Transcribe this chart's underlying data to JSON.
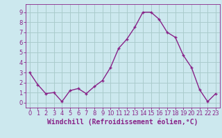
{
  "x": [
    0,
    1,
    2,
    3,
    4,
    5,
    6,
    7,
    8,
    9,
    10,
    11,
    12,
    13,
    14,
    15,
    16,
    17,
    18,
    19,
    20,
    21,
    22,
    23
  ],
  "y": [
    3.0,
    1.8,
    0.9,
    1.0,
    0.1,
    1.2,
    1.4,
    0.9,
    1.6,
    2.2,
    3.5,
    5.4,
    6.3,
    7.5,
    9.0,
    9.0,
    8.3,
    7.0,
    6.5,
    4.7,
    3.5,
    1.3,
    0.1,
    0.9
  ],
  "line_color": "#882288",
  "marker": "+",
  "marker_size": 3,
  "marker_lw": 1.0,
  "bg_color": "#cce8ee",
  "grid_color": "#aacccc",
  "xlabel": "Windchill (Refroidissement éolien,°C)",
  "xlabel_color": "#882288",
  "tick_color": "#882288",
  "ylabel_ticks": [
    0,
    1,
    2,
    3,
    4,
    5,
    6,
    7,
    8,
    9
  ],
  "xlim": [
    -0.5,
    23.5
  ],
  "ylim": [
    -0.5,
    9.8
  ],
  "xticks": [
    0,
    1,
    2,
    3,
    4,
    5,
    6,
    7,
    8,
    9,
    10,
    11,
    12,
    13,
    14,
    15,
    16,
    17,
    18,
    19,
    20,
    21,
    22,
    23
  ],
  "tick_fontsize": 6,
  "xlabel_fontsize": 7,
  "linewidth": 1.0
}
